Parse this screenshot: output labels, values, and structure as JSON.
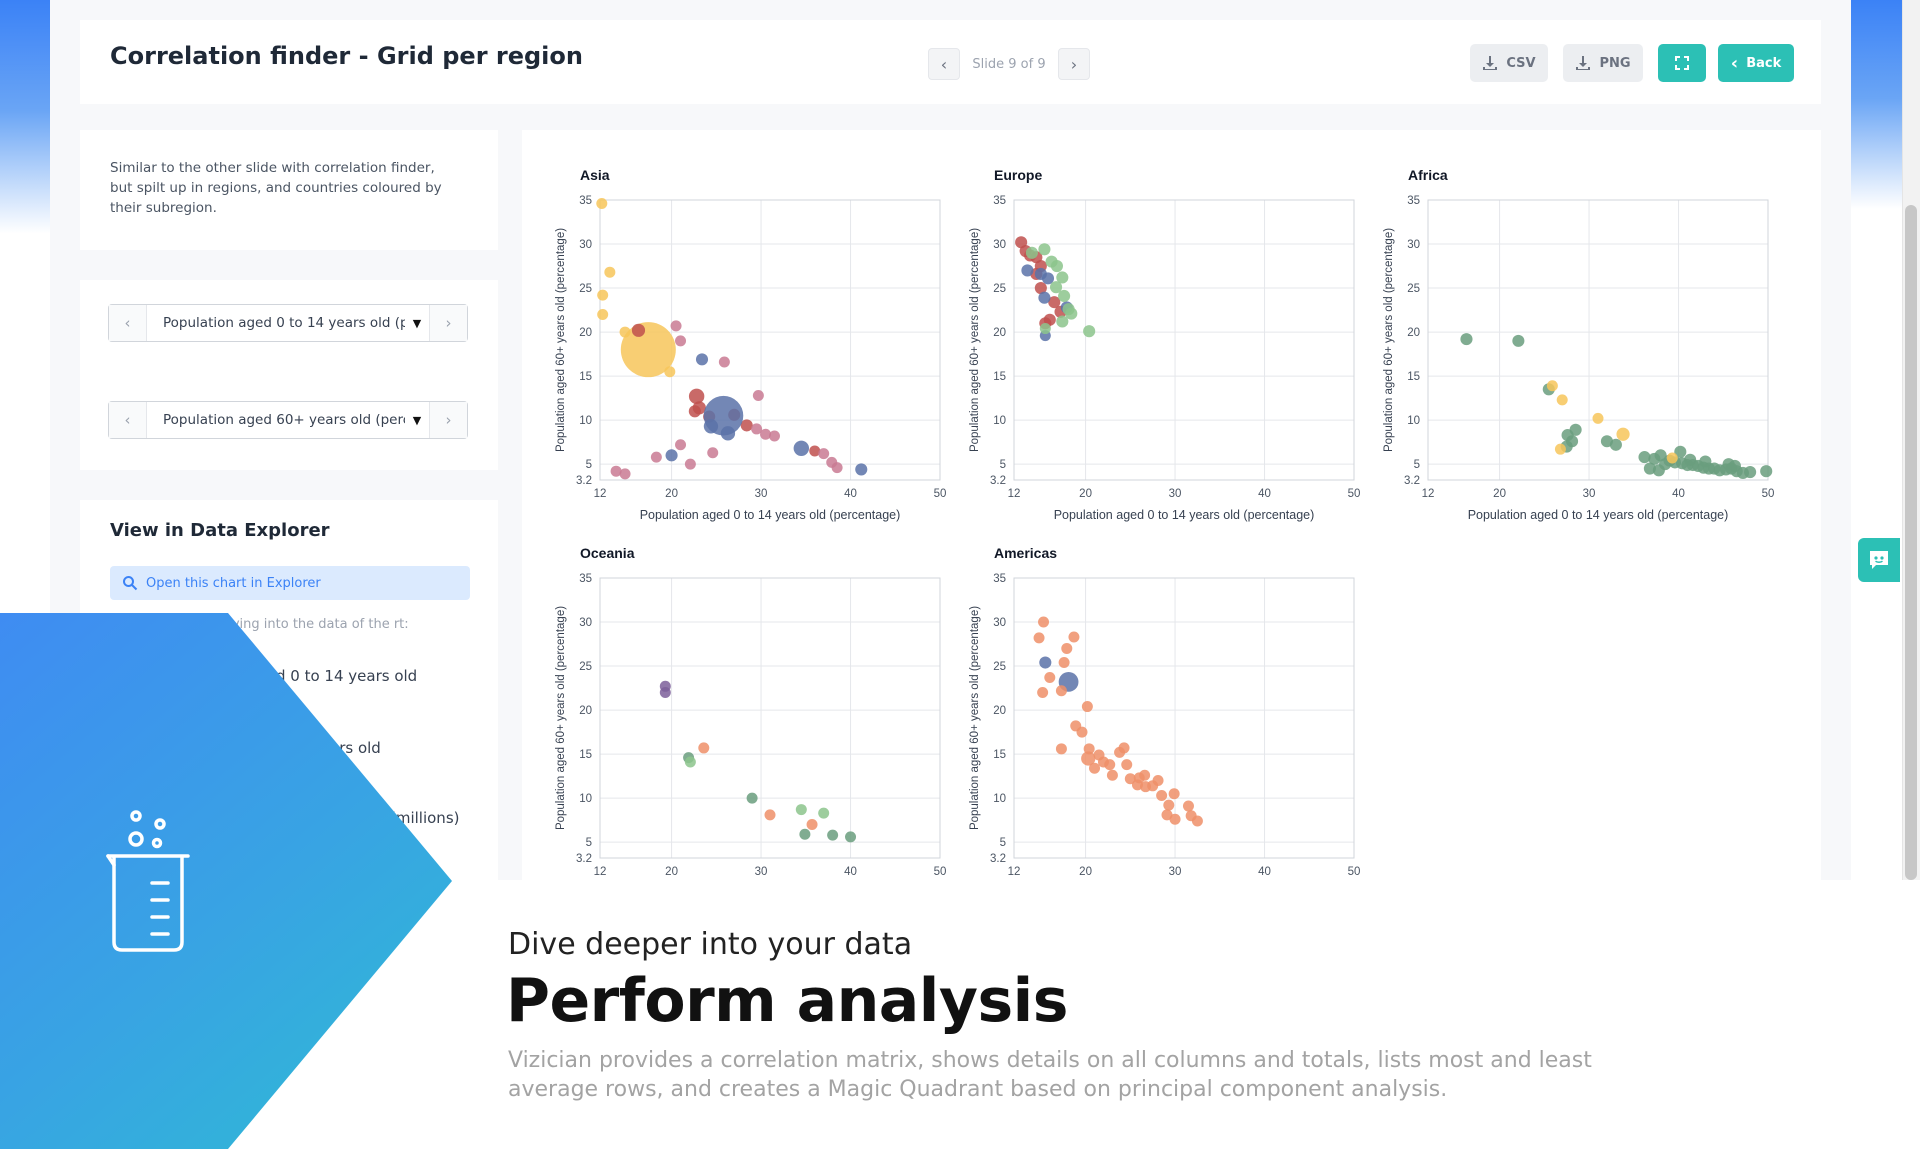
{
  "header": {
    "title": "Correlation finder - Grid per region",
    "slide_label": "Slide 9 of 9",
    "prev_icon": "chevron-left-icon",
    "next_icon": "chevron-right-icon",
    "csv_label": "CSV",
    "png_label": "PNG",
    "back_label": "Back"
  },
  "description": "Similar to the other slide with correlation finder, but spilt up in regions, and countries coloured by their subregion.",
  "selects": {
    "x_value": "Population aged 0 to 14 years old (pe",
    "y_value": "Population aged 60+ years old (perc"
  },
  "explorer": {
    "title": "View in Data Explorer",
    "open_label": "Open this chart in Explorer",
    "hint": "diving into the data of the rt:",
    "var1": "d 0 to 14 years old",
    "var2": "ars old",
    "var3": "(millions)"
  },
  "banner": {
    "subtitle": "Dive deeper into your data",
    "headline": "Perform analysis",
    "blurb": "Vizician provides a correlation matrix, shows details on all columns and totals, lists most and least average rows, and creates a Magic Quadrant based on principal component analysis."
  },
  "colors": {
    "accent": "#2cc0b5",
    "brand_blue": "#3b82f6",
    "pos_yellow": "#f7c65a",
    "pos_red": "#c0504d",
    "pos_pink": "#c97a93",
    "pos_navy": "#5b72a8",
    "pos_green": "#6a9e7e",
    "pos_lightgreen": "#8cc48c",
    "pos_orange": "#ef8f68",
    "pos_purple": "#7d5f9a"
  },
  "chart_data": [
    {
      "type": "scatter",
      "title": "Asia",
      "xlabel": "Population aged 0 to 14 years old (percentage)",
      "ylabel": "Population aged 60+ years old (percentage)",
      "xlim": [
        12,
        50
      ],
      "ylim": [
        3.2,
        35
      ],
      "xticks": [
        "12",
        "20",
        "30",
        "40",
        "50"
      ],
      "yticks": [
        "3.2",
        "5",
        "10",
        "15",
        "20",
        "25",
        "30",
        "35"
      ],
      "grid": true,
      "points": [
        [
          12.2,
          34.6,
          1,
          "#f7c65a"
        ],
        [
          13.1,
          26.8,
          1,
          "#f7c65a"
        ],
        [
          12.3,
          24.2,
          1,
          "#f7c65a"
        ],
        [
          12.3,
          22.0,
          1,
          "#f7c65a"
        ],
        [
          14.8,
          20.0,
          1,
          "#f7c65a"
        ],
        [
          17.4,
          18.0,
          5,
          "#f7c65a"
        ],
        [
          19.8,
          15.5,
          1,
          "#f7c65a"
        ],
        [
          16.3,
          20.2,
          1.2,
          "#c0504d"
        ],
        [
          22.8,
          12.7,
          1.4,
          "#c0504d"
        ],
        [
          23.1,
          11.4,
          1.2,
          "#c0504d"
        ],
        [
          22.6,
          11.0,
          1.1,
          "#c0504d"
        ],
        [
          24.2,
          10.4,
          1.1,
          "#c0504d"
        ],
        [
          27.0,
          10.6,
          1.1,
          "#c0504d"
        ],
        [
          28.4,
          9.4,
          1.1,
          "#c0504d"
        ],
        [
          36.0,
          6.5,
          1,
          "#c0504d"
        ],
        [
          20.5,
          20.7,
          1,
          "#c97a93"
        ],
        [
          21.0,
          19.0,
          1,
          "#c97a93"
        ],
        [
          25.9,
          16.6,
          1,
          "#c97a93"
        ],
        [
          29.7,
          12.8,
          1,
          "#c97a93"
        ],
        [
          29.5,
          9.0,
          1,
          "#c97a93"
        ],
        [
          30.5,
          8.4,
          1,
          "#c97a93"
        ],
        [
          31.5,
          8.2,
          1,
          "#c97a93"
        ],
        [
          21.0,
          7.2,
          1,
          "#c97a93"
        ],
        [
          24.6,
          6.3,
          1,
          "#c97a93"
        ],
        [
          22.1,
          5.0,
          1,
          "#c97a93"
        ],
        [
          18.3,
          5.8,
          1,
          "#c97a93"
        ],
        [
          13.8,
          4.2,
          1,
          "#c97a93"
        ],
        [
          14.8,
          3.9,
          1,
          "#c97a93"
        ],
        [
          37.0,
          6.2,
          1,
          "#c97a93"
        ],
        [
          37.9,
          5.2,
          1,
          "#c97a93"
        ],
        [
          38.5,
          4.6,
          1,
          "#c97a93"
        ],
        [
          23.4,
          16.9,
          1.1,
          "#5b72a8"
        ],
        [
          25.8,
          10.5,
          3.6,
          "#5b72a8"
        ],
        [
          24.4,
          9.3,
          1.3,
          "#5b72a8"
        ],
        [
          26.3,
          8.5,
          1.3,
          "#5b72a8"
        ],
        [
          34.5,
          6.8,
          1.4,
          "#5b72a8"
        ],
        [
          41.2,
          4.4,
          1.1,
          "#5b72a8"
        ],
        [
          20.0,
          6.0,
          1.1,
          "#5b72a8"
        ]
      ]
    },
    {
      "type": "scatter",
      "title": "Europe",
      "xlabel": "Population aged 0 to 14 years old (percentage)",
      "ylabel": "Population aged 60+ years old (percentage)",
      "xlim": [
        12,
        50
      ],
      "ylim": [
        3.2,
        35
      ],
      "xticks": [
        "12",
        "20",
        "30",
        "40",
        "50"
      ],
      "yticks": [
        "3.2",
        "5",
        "10",
        "15",
        "20",
        "25",
        "30",
        "35"
      ],
      "grid": true,
      "points": [
        [
          12.8,
          30.2,
          1.1,
          "#c0504d"
        ],
        [
          13.3,
          29.2,
          1.1,
          "#c0504d"
        ],
        [
          13.8,
          28.7,
          1.1,
          "#c0504d"
        ],
        [
          14.5,
          28.5,
          1.1,
          "#c0504d"
        ],
        [
          15.0,
          27.5,
          1.1,
          "#c0504d"
        ],
        [
          14.5,
          26.6,
          1.1,
          "#c0504d"
        ],
        [
          15.0,
          25.0,
          1.1,
          "#c0504d"
        ],
        [
          16.5,
          23.4,
          1.1,
          "#c0504d"
        ],
        [
          17.2,
          22.3,
          1.1,
          "#c0504d"
        ],
        [
          16.0,
          21.4,
          1.1,
          "#c0504d"
        ],
        [
          15.5,
          21.0,
          1.1,
          "#c0504d"
        ],
        [
          13.5,
          27.0,
          1.1,
          "#5b72a8"
        ],
        [
          15.0,
          26.6,
          1.1,
          "#5b72a8"
        ],
        [
          15.8,
          26.1,
          1.1,
          "#5b72a8"
        ],
        [
          15.4,
          23.9,
          1.1,
          "#5b72a8"
        ],
        [
          17.9,
          22.8,
          1.1,
          "#5b72a8"
        ],
        [
          15.5,
          19.6,
          1,
          "#5b72a8"
        ],
        [
          14.0,
          29.0,
          1.1,
          "#8cc48c"
        ],
        [
          15.4,
          29.4,
          1.1,
          "#8cc48c"
        ],
        [
          16.2,
          28.0,
          1.1,
          "#8cc48c"
        ],
        [
          16.8,
          27.5,
          1.1,
          "#8cc48c"
        ],
        [
          17.4,
          26.2,
          1.1,
          "#8cc48c"
        ],
        [
          16.7,
          25.1,
          1.1,
          "#8cc48c"
        ],
        [
          17.6,
          24.1,
          1.1,
          "#8cc48c"
        ],
        [
          18.1,
          22.6,
          1.1,
          "#8cc48c"
        ],
        [
          18.4,
          22.1,
          1.1,
          "#8cc48c"
        ],
        [
          17.4,
          21.2,
          1.1,
          "#8cc48c"
        ],
        [
          20.4,
          20.1,
          1.1,
          "#8cc48c"
        ],
        [
          15.5,
          20.4,
          1,
          "#8cc48c"
        ]
      ]
    },
    {
      "type": "scatter",
      "title": "Africa",
      "xlabel": "Population aged 0 to 14 years old (percentage)",
      "ylabel": "Population aged 60+ years old (percentage)",
      "xlim": [
        12,
        50
      ],
      "ylim": [
        3.2,
        35
      ],
      "xticks": [
        "12",
        "20",
        "30",
        "40",
        "50"
      ],
      "yticks": [
        "3.2",
        "5",
        "10",
        "15",
        "20",
        "25",
        "30",
        "35"
      ],
      "grid": true,
      "points": [
        [
          16.3,
          19.2,
          1.1,
          "#6a9e7e"
        ],
        [
          22.1,
          19.0,
          1.1,
          "#6a9e7e"
        ],
        [
          25.5,
          13.5,
          1.1,
          "#6a9e7e"
        ],
        [
          28.5,
          8.9,
          1.1,
          "#6a9e7e"
        ],
        [
          27.6,
          8.3,
          1.1,
          "#6a9e7e"
        ],
        [
          28.1,
          7.6,
          1.1,
          "#6a9e7e"
        ],
        [
          32.0,
          7.6,
          1.1,
          "#6a9e7e"
        ],
        [
          33.0,
          7.2,
          1.1,
          "#6a9e7e"
        ],
        [
          27.5,
          7.0,
          1.1,
          "#6a9e7e"
        ],
        [
          36.2,
          5.8,
          1.1,
          "#6a9e7e"
        ],
        [
          37.3,
          5.6,
          1.1,
          "#6a9e7e"
        ],
        [
          38.0,
          6.0,
          1.1,
          "#6a9e7e"
        ],
        [
          39.0,
          5.4,
          1.1,
          "#6a9e7e"
        ],
        [
          39.6,
          5.2,
          1.1,
          "#6a9e7e"
        ],
        [
          40.4,
          5.1,
          1.1,
          "#6a9e7e"
        ],
        [
          41.0,
          4.9,
          1.1,
          "#6a9e7e"
        ],
        [
          41.6,
          4.9,
          1.1,
          "#6a9e7e"
        ],
        [
          42.2,
          4.8,
          1.1,
          "#6a9e7e"
        ],
        [
          42.8,
          4.6,
          1.1,
          "#6a9e7e"
        ],
        [
          43.4,
          4.5,
          1.1,
          "#6a9e7e"
        ],
        [
          44.0,
          4.5,
          1.1,
          "#6a9e7e"
        ],
        [
          44.6,
          4.3,
          1.1,
          "#6a9e7e"
        ],
        [
          45.3,
          4.4,
          1.1,
          "#6a9e7e"
        ],
        [
          45.9,
          4.5,
          1.1,
          "#6a9e7e"
        ],
        [
          46.5,
          4.2,
          1.1,
          "#6a9e7e"
        ],
        [
          47.2,
          4.0,
          1.1,
          "#6a9e7e"
        ],
        [
          48.0,
          4.1,
          1.1,
          "#6a9e7e"
        ],
        [
          49.8,
          4.2,
          1.1,
          "#6a9e7e"
        ],
        [
          36.8,
          4.5,
          1.1,
          "#6a9e7e"
        ],
        [
          37.8,
          4.3,
          1.1,
          "#6a9e7e"
        ],
        [
          40.2,
          6.4,
          1.1,
          "#6a9e7e"
        ],
        [
          38.5,
          5.0,
          1.1,
          "#6a9e7e"
        ],
        [
          41.3,
          5.5,
          1.1,
          "#6a9e7e"
        ],
        [
          43.0,
          5.3,
          1.1,
          "#6a9e7e"
        ],
        [
          45.6,
          5.0,
          1.1,
          "#6a9e7e"
        ],
        [
          46.3,
          4.8,
          1.1,
          "#6a9e7e"
        ],
        [
          25.9,
          13.9,
          1,
          "#f7c65a"
        ],
        [
          27.0,
          12.3,
          1,
          "#f7c65a"
        ],
        [
          31.0,
          10.2,
          1,
          "#f7c65a"
        ],
        [
          33.8,
          8.4,
          1.2,
          "#f7c65a"
        ],
        [
          26.8,
          6.7,
          1,
          "#f7c65a"
        ],
        [
          39.3,
          5.7,
          1,
          "#f7c65a"
        ]
      ]
    },
    {
      "type": "scatter",
      "title": "Oceania",
      "xlabel": "",
      "ylabel": "Population aged 60+ years old (percentage)",
      "xlim": [
        12,
        50
      ],
      "ylim": [
        3.2,
        35
      ],
      "xticks": [
        "12",
        "20",
        "30",
        "40",
        "50"
      ],
      "yticks": [
        "3.2",
        "5",
        "10",
        "15",
        "20",
        "25",
        "30",
        "35"
      ],
      "grid": true,
      "points": [
        [
          19.3,
          22.7,
          1,
          "#7d5f9a"
        ],
        [
          19.3,
          22.0,
          1,
          "#7d5f9a"
        ],
        [
          21.9,
          14.6,
          1,
          "#6a9e7e"
        ],
        [
          22.1,
          14.1,
          1,
          "#8cc48c"
        ],
        [
          23.6,
          15.7,
          1,
          "#ef8f68"
        ],
        [
          31.0,
          8.1,
          1,
          "#ef8f68"
        ],
        [
          35.7,
          7.0,
          1,
          "#ef8f68"
        ],
        [
          29.0,
          10.0,
          1,
          "#6a9e7e"
        ],
        [
          34.5,
          8.7,
          1,
          "#8cc48c"
        ],
        [
          37.0,
          8.3,
          1,
          "#8cc48c"
        ],
        [
          34.9,
          5.9,
          1,
          "#6a9e7e"
        ],
        [
          38.0,
          5.8,
          1,
          "#6a9e7e"
        ],
        [
          40.0,
          5.6,
          1,
          "#6a9e7e"
        ]
      ]
    },
    {
      "type": "scatter",
      "title": "Americas",
      "xlabel": "",
      "ylabel": "Population aged 60+ years old (percentage)",
      "xlim": [
        12,
        50
      ],
      "ylim": [
        3.2,
        35
      ],
      "xticks": [
        "12",
        "20",
        "30",
        "40",
        "50"
      ],
      "yticks": [
        "3.2",
        "5",
        "10",
        "15",
        "20",
        "25",
        "30",
        "35"
      ],
      "grid": true,
      "points": [
        [
          15.5,
          25.4,
          1.1,
          "#5b72a8"
        ],
        [
          18.1,
          23.2,
          1.8,
          "#5b72a8"
        ],
        [
          15.3,
          30.0,
          1,
          "#ef8f68"
        ],
        [
          14.8,
          28.2,
          1,
          "#ef8f68"
        ],
        [
          18.7,
          28.3,
          1,
          "#ef8f68"
        ],
        [
          17.9,
          27.0,
          1,
          "#ef8f68"
        ],
        [
          17.6,
          25.4,
          1,
          "#ef8f68"
        ],
        [
          16.0,
          23.7,
          1,
          "#ef8f68"
        ],
        [
          17.3,
          22.2,
          1,
          "#ef8f68"
        ],
        [
          15.2,
          22.0,
          1,
          "#ef8f68"
        ],
        [
          20.2,
          20.4,
          1,
          "#ef8f68"
        ],
        [
          18.9,
          18.2,
          1,
          "#ef8f68"
        ],
        [
          19.6,
          17.5,
          1,
          "#ef8f68"
        ],
        [
          20.4,
          15.6,
          1,
          "#ef8f68"
        ],
        [
          17.3,
          15.6,
          1,
          "#ef8f68"
        ],
        [
          20.3,
          14.5,
          1.3,
          "#ef8f68"
        ],
        [
          21.0,
          13.4,
          1,
          "#ef8f68"
        ],
        [
          21.5,
          14.9,
          1,
          "#ef8f68"
        ],
        [
          22.0,
          14.1,
          1,
          "#ef8f68"
        ],
        [
          22.7,
          13.8,
          1,
          "#ef8f68"
        ],
        [
          23.8,
          15.2,
          1,
          "#ef8f68"
        ],
        [
          24.3,
          15.7,
          1,
          "#ef8f68"
        ],
        [
          24.6,
          13.8,
          1,
          "#ef8f68"
        ],
        [
          23.0,
          12.6,
          1,
          "#ef8f68"
        ],
        [
          25.0,
          12.2,
          1,
          "#ef8f68"
        ],
        [
          26.0,
          12.3,
          1,
          "#ef8f68"
        ],
        [
          26.6,
          12.6,
          1,
          "#ef8f68"
        ],
        [
          25.8,
          11.5,
          1,
          "#ef8f68"
        ],
        [
          26.7,
          11.3,
          1,
          "#ef8f68"
        ],
        [
          27.5,
          11.4,
          1,
          "#ef8f68"
        ],
        [
          28.1,
          12.0,
          1,
          "#ef8f68"
        ],
        [
          28.5,
          10.3,
          1,
          "#ef8f68"
        ],
        [
          29.9,
          10.5,
          1,
          "#ef8f68"
        ],
        [
          29.3,
          9.2,
          1,
          "#ef8f68"
        ],
        [
          31.5,
          9.1,
          1,
          "#ef8f68"
        ],
        [
          29.1,
          8.1,
          1,
          "#ef8f68"
        ],
        [
          30.0,
          7.6,
          1,
          "#ef8f68"
        ],
        [
          31.8,
          8.0,
          1,
          "#ef8f68"
        ],
        [
          32.5,
          7.4,
          1,
          "#ef8f68"
        ]
      ]
    }
  ]
}
